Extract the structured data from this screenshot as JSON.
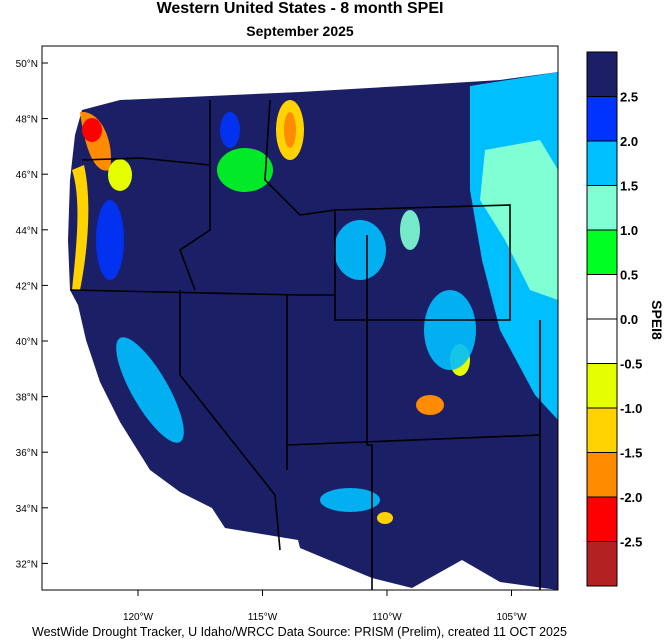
{
  "title": "Western United States - 8 month SPEI",
  "subtitle": "September 2025",
  "footer": "WestWide Drought Tracker, U Idaho/WRCC Data Source: PRISM (Prelim), created 11 OCT 2025",
  "axes": {
    "lat_ticks": [
      "50°N",
      "48°N",
      "46°N",
      "44°N",
      "42°N",
      "40°N",
      "38°N",
      "36°N",
      "34°N",
      "32°N"
    ],
    "lon_ticks": [
      "120°W",
      "115°W",
      "110°W",
      "105°W"
    ]
  },
  "colorbar": {
    "label": "SPEI8",
    "colors": [
      "#1b1f66",
      "#0033ff",
      "#00bfff",
      "#80ffd4",
      "#00ff22",
      "#ffffff",
      "#ffffff",
      "#e6ff00",
      "#ffd200",
      "#ff8c00",
      "#ff0000",
      "#b22222"
    ],
    "tick_labels": [
      "2.5",
      "2.0",
      "1.5",
      "1.0",
      "0.5",
      "0.0",
      "-0.5",
      "-1.0",
      "-1.5",
      "-2.0",
      "-2.5"
    ]
  }
}
